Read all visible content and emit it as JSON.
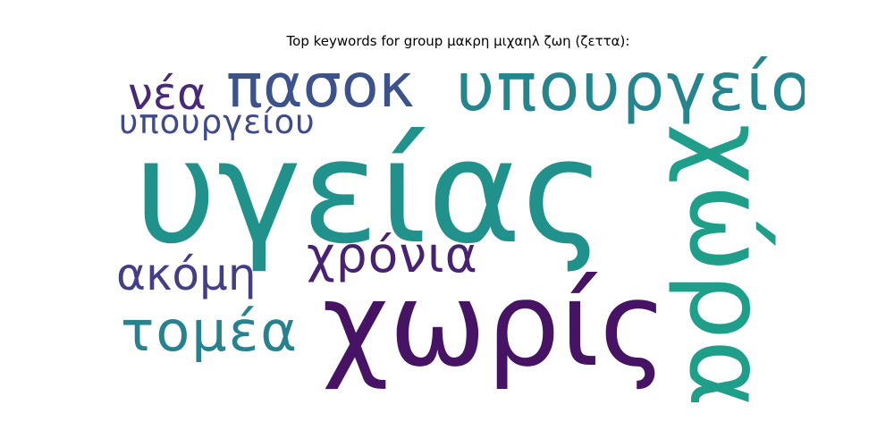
{
  "title": "Top keywords for group μακρη μιχαηλ ζωη (ζεττα):",
  "words": [
    {
      "text": "υγείας",
      "color": "#21918c"
    },
    {
      "text": "χωρίς",
      "color": "#471365"
    },
    {
      "text": "υπουργείο",
      "color": "#25858e"
    },
    {
      "text": "χώρα",
      "color": "#1f9e89"
    },
    {
      "text": "πασοκ",
      "color": "#3b528b"
    },
    {
      "text": "νέα",
      "color": "#482878"
    },
    {
      "text": "υπουργείου",
      "color": "#3e4a89"
    },
    {
      "text": "χρόνια",
      "color": "#482173"
    },
    {
      "text": "ακόμη",
      "color": "#433e85"
    },
    {
      "text": "τομέα",
      "color": "#26828e"
    }
  ]
}
